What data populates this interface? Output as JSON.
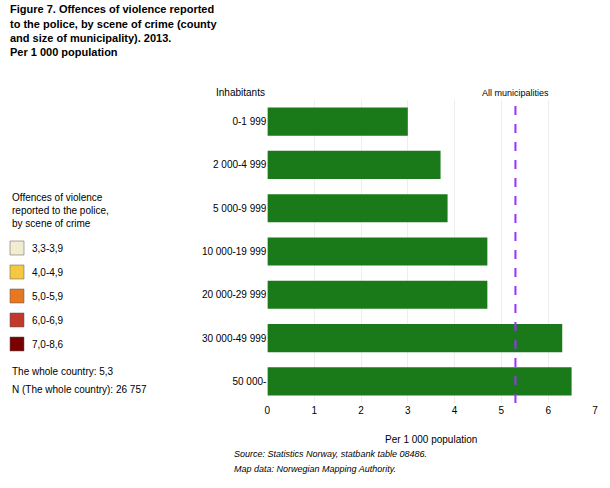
{
  "chart_data": {
    "type": "bar",
    "orientation": "horizontal",
    "title": "Figure 7. Offences of violence reported\nto the police, by scene of crime (county\nand size of municipality). 2013.\nPer 1 000 population",
    "categories": [
      "0-1 999",
      "2 000-4 999",
      "5 000-9 999",
      "10 000-19 999",
      "20 000-29 999",
      "30 000-49 999",
      "50 000-"
    ],
    "values": [
      3.0,
      3.7,
      3.85,
      4.7,
      4.7,
      6.3,
      6.5
    ],
    "color": "#1a7a1a",
    "xlabel": "Per 1 000 population",
    "ylabel": "Inhabitants",
    "xlim": [
      0,
      7
    ],
    "xticks": [
      0,
      1,
      2,
      3,
      4,
      5,
      6,
      7
    ],
    "grid": true,
    "reference_line": {
      "value": 5.3,
      "label": "All municipalities",
      "color": "#9B30FF",
      "line_style": "dashed"
    },
    "map_legend": {
      "title": "Offences of violence\nreported to the police,\nby scene of crime",
      "items": [
        {
          "label": "3,3-3,9",
          "color": "#F2EDD0"
        },
        {
          "label": "4,0-4,9",
          "color": "#F5C842"
        },
        {
          "label": "5,0-5,9",
          "color": "#E87722"
        },
        {
          "label": "6,0-6,9",
          "color": "#C0392B"
        },
        {
          "label": "7,0-8,6",
          "color": "#7B0000"
        }
      ]
    },
    "notes": [
      "The whole country: 5,3",
      "N (The whole country): 26 757"
    ],
    "source": [
      "Source: Statistics Norway, statbank table 08486.",
      "Map data: Norwegian Mapping Authority."
    ],
    "background_color": "#ffffff"
  }
}
